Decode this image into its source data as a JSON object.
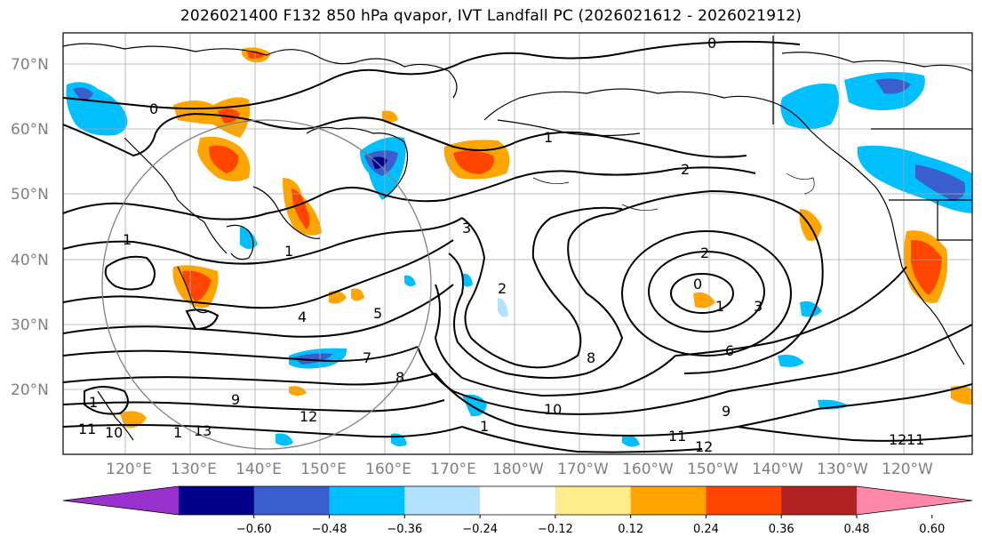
{
  "title": "2026021400 F132 850 hPa qvapor, IVT Landfall PC (2026021612 - 2026021912)",
  "lat_labels": [
    "70°N",
    "60°N",
    "50°N",
    "40°N",
    "30°N",
    "20°N"
  ],
  "lon_labels": [
    "120°E",
    "130°E",
    "140°E",
    "150°E",
    "160°E",
    "170°E",
    "180°W",
    "170°W",
    "160°W",
    "150°W",
    "140°W",
    "130°W",
    "120°W"
  ],
  "colorbar": {
    "colors": [
      "#9932CC",
      "#00008B",
      "#3A5FCD",
      "#00BFFF",
      "#B2E2FF",
      "#FFFFFF",
      "#FFEC8B",
      "#FFA500",
      "#FF4500",
      "#B22222",
      "#FF88AA"
    ],
    "tick_labels": [
      "−0.60",
      "−0.48",
      "−0.36",
      "−0.24",
      "−0.12",
      "0.12",
      "0.24",
      "0.36",
      "0.48",
      "0.60"
    ]
  },
  "contour_labels": [
    "0",
    "0",
    "1",
    "2",
    "3",
    "1",
    "1",
    "2",
    "0",
    "1",
    "3",
    "6",
    "2",
    "4",
    "5",
    "7",
    "8",
    "9",
    "10",
    "11",
    "12",
    "12",
    "13",
    "1",
    "1",
    "11",
    "8",
    "9",
    "12",
    "10",
    "11",
    "1"
  ]
}
